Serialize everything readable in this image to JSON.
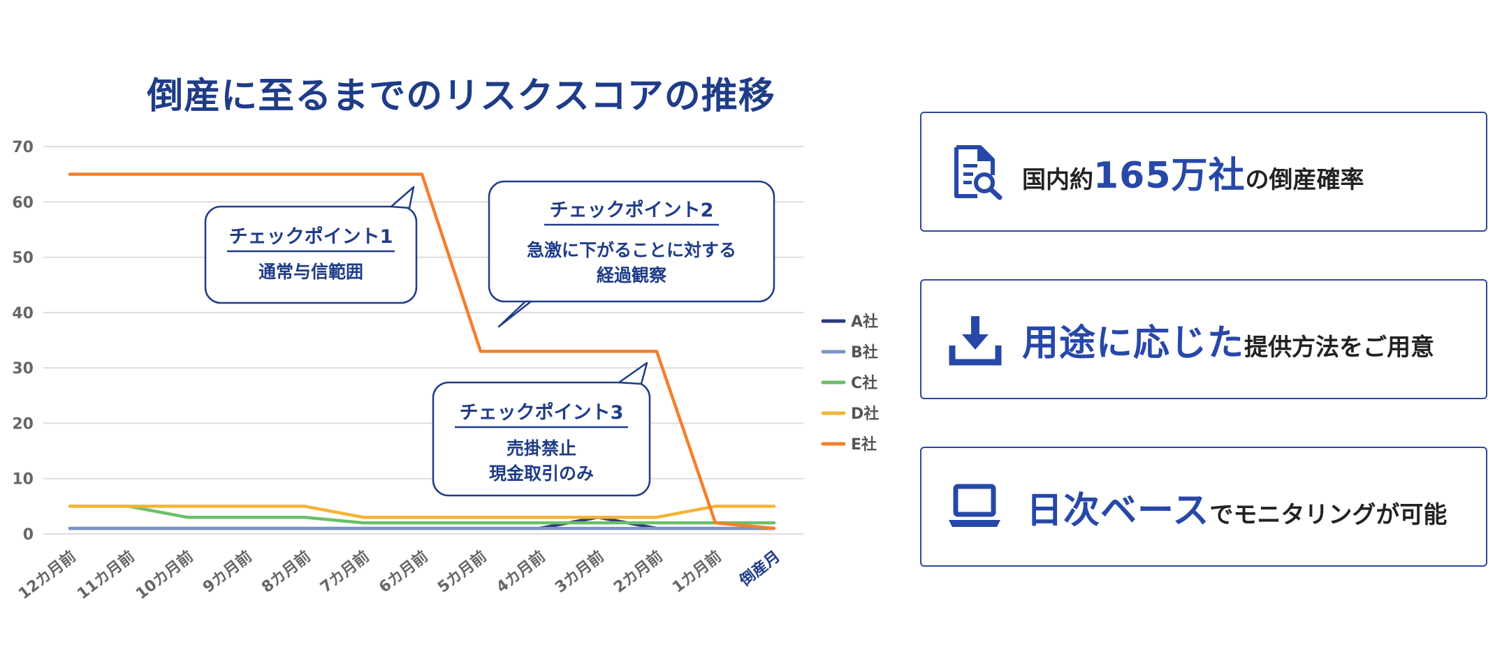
{
  "title": "倒産に至るまでのリスクスコアの推移",
  "chart_data": {
    "type": "line",
    "title": "倒産に至るまでのリスクスコアの推移",
    "categories": [
      "12カ月前",
      "11カ月前",
      "10カ月前",
      "9カ月前",
      "8カ月前",
      "7カ月前",
      "6カ月前",
      "5カ月前",
      "4カ月前",
      "3カ月前",
      "2カ月前",
      "1カ月前",
      "倒産月"
    ],
    "highlight_category": "倒産月",
    "ylim": [
      0,
      70
    ],
    "yticks": [
      "0",
      "10",
      "20",
      "30",
      "40",
      "50",
      "60",
      "70"
    ],
    "grid": true,
    "legend_position": "right",
    "series": [
      {
        "name": "A社",
        "color": "#2b3a7c",
        "values": [
          1,
          1,
          1,
          1,
          1,
          1,
          1,
          1,
          1,
          3,
          1,
          1,
          1
        ]
      },
      {
        "name": "B社",
        "color": "#7a93c6",
        "values": [
          1,
          1,
          1,
          1,
          1,
          1,
          1,
          1,
          1,
          1,
          1,
          1,
          1
        ]
      },
      {
        "name": "C社",
        "color": "#6bbf6a",
        "values": [
          5,
          5,
          3,
          3,
          3,
          2,
          2,
          2,
          2,
          2,
          2,
          2,
          2
        ]
      },
      {
        "name": "D社",
        "color": "#f5b335",
        "values": [
          5,
          5,
          5,
          5,
          5,
          3,
          3,
          3,
          3,
          3,
          3,
          5,
          5
        ]
      },
      {
        "name": "E社",
        "color": "#f57f2a",
        "values": [
          65,
          65,
          65,
          65,
          65,
          65,
          65,
          33,
          33,
          33,
          33,
          2,
          1
        ]
      }
    ],
    "annotations": [
      {
        "title": "チェックポイント1",
        "lines": [
          "通常与信範囲"
        ]
      },
      {
        "title": "チェックポイント2",
        "lines": [
          "急激に下がることに対する",
          "経過観察"
        ]
      },
      {
        "title": "チェックポイント3",
        "lines": [
          "売掛禁止",
          "現金取引のみ"
        ]
      }
    ]
  },
  "features": [
    {
      "icon": "document-search-icon",
      "highlight": "国内約",
      "highlight2": "165万社",
      "text": "の倒産確率"
    },
    {
      "icon": "download-icon",
      "highlight": "",
      "highlight2": "用途に応じた",
      "text": "提供方法をご用意"
    },
    {
      "icon": "laptop-icon",
      "highlight": "",
      "highlight2": "日次ベース",
      "text": "でモニタリングが可能"
    }
  ],
  "colors": {
    "accent": "#2748a8",
    "dark_blue": "#1f3c88",
    "border": "#2d4a9a"
  }
}
